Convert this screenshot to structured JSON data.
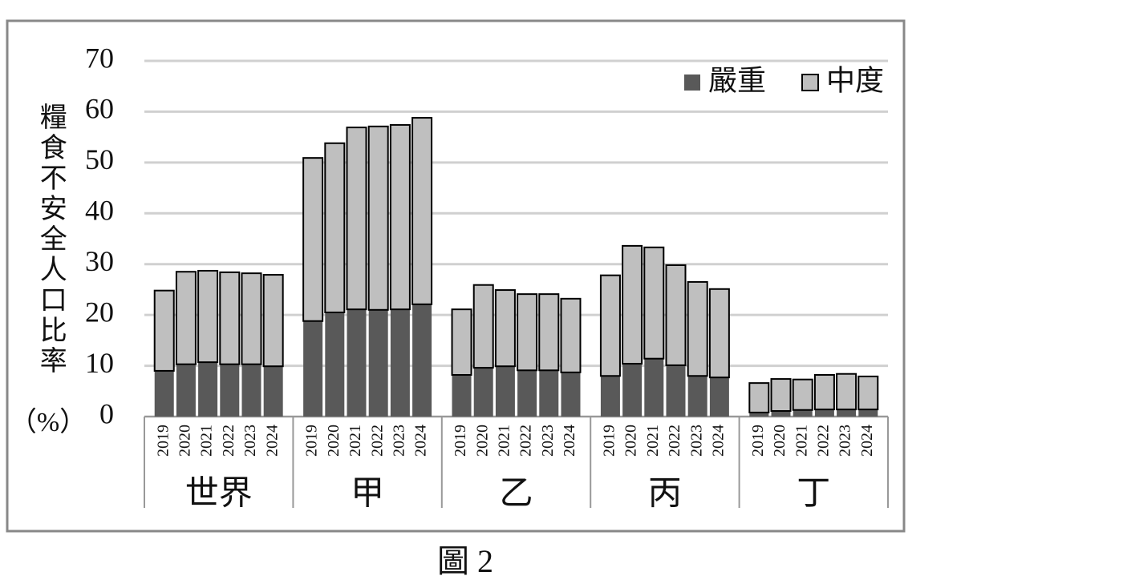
{
  "chart_data": {
    "type": "stacked_bar",
    "caption": "圖 2",
    "y_label": "糧食不安全人口比率",
    "y_unit": "（%）",
    "groups": [
      "世界",
      "甲",
      "乙",
      "丙",
      "丁"
    ],
    "categories": [
      "2019",
      "2020",
      "2021",
      "2022",
      "2023",
      "2024",
      "2019",
      "2020",
      "2021",
      "2022",
      "2023",
      "2024",
      "2019",
      "2020",
      "2021",
      "2022",
      "2023",
      "2024",
      "2019",
      "2020",
      "2021",
      "2022",
      "2023",
      "2024",
      "2019",
      "2020",
      "2021",
      "2022",
      "2023",
      "2024"
    ],
    "series": [
      {
        "name": "嚴重",
        "color": "#595959",
        "values": [
          9.0,
          10.3,
          10.7,
          10.3,
          10.3,
          9.9,
          18.8,
          20.5,
          21.1,
          21.0,
          21.1,
          22.1,
          8.2,
          9.6,
          9.9,
          9.1,
          9.1,
          8.7,
          8.0,
          10.4,
          11.4,
          10.1,
          8.0,
          7.7,
          0.8,
          1.1,
          1.3,
          1.4,
          1.4,
          1.4
        ]
      },
      {
        "name": "中度",
        "color": "#bfbfbf",
        "values": [
          15.8,
          18.2,
          18.0,
          18.1,
          17.9,
          18.0,
          32.1,
          33.3,
          35.8,
          36.1,
          36.3,
          36.7,
          12.9,
          16.3,
          15.0,
          15.0,
          15.0,
          14.5,
          19.8,
          23.2,
          21.9,
          19.7,
          18.5,
          17.4,
          5.8,
          6.3,
          6.0,
          6.8,
          7.0,
          6.5
        ]
      }
    ],
    "ylim": [
      0,
      70
    ],
    "yticks": [
      0,
      10,
      20,
      30,
      40,
      50,
      60,
      70
    ],
    "grid": true,
    "legend": "top-right"
  }
}
